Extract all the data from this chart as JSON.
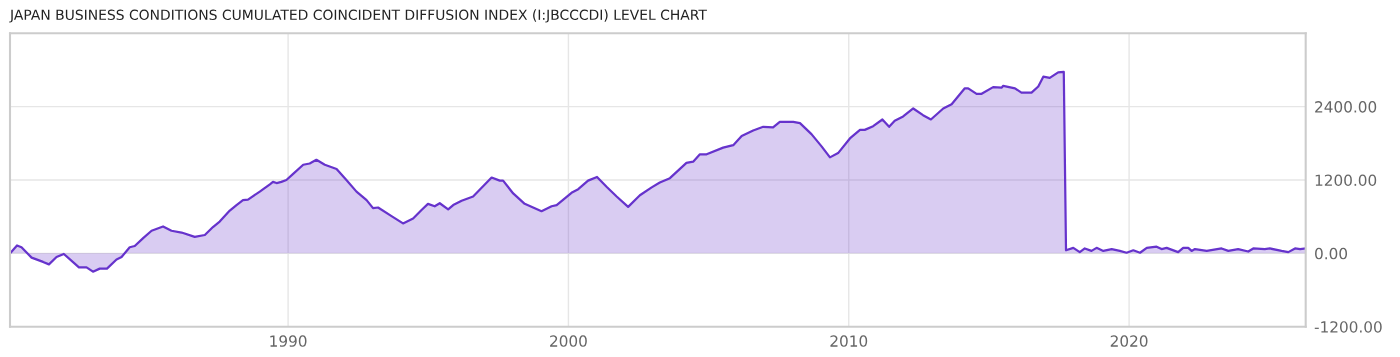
{
  "chart_data": {
    "type": "area",
    "title": "JAPAN BUSINESS CONDITIONS CUMULATED COINCIDENT DIFFUSION INDEX (I:JBCCCDI) LEVEL CHART",
    "x": [
      1980.08,
      1980.33,
      1980.49,
      1980.85,
      1981.26,
      1981.47,
      1981.74,
      1982.0,
      1982.54,
      1982.81,
      1983.04,
      1983.28,
      1983.54,
      1983.88,
      1984.06,
      1984.35,
      1984.53,
      1984.83,
      1985.13,
      1985.54,
      1985.84,
      1986.2,
      1986.67,
      1987.03,
      1987.32,
      1987.56,
      1987.92,
      1988.16,
      1988.39,
      1988.57,
      1988.99,
      1989.35,
      1989.46,
      1989.59,
      1989.76,
      1989.94,
      1990.18,
      1990.54,
      1990.77,
      1991.01,
      1991.31,
      1991.73,
      1992.08,
      1992.44,
      1992.8,
      1993.03,
      1993.21,
      1993.69,
      1994.1,
      1994.46,
      1994.76,
      1994.99,
      1995.23,
      1995.41,
      1995.71,
      1995.89,
      1996.19,
      1996.6,
      1997.26,
      1997.55,
      1997.67,
      1998.03,
      1998.44,
      1998.74,
      1999.04,
      1999.4,
      1999.58,
      2000.11,
      2000.35,
      2000.7,
      2001.02,
      2001.36,
      2001.72,
      2002.13,
      2002.55,
      2002.97,
      2003.26,
      2003.62,
      2004.21,
      2004.45,
      2004.69,
      2004.93,
      2005.52,
      2005.88,
      2006.18,
      2006.59,
      2006.95,
      2007.3,
      2007.54,
      2008.02,
      2008.26,
      2008.67,
      2009.03,
      2009.33,
      2009.62,
      2010.04,
      2010.4,
      2010.57,
      2010.87,
      2011.2,
      2011.44,
      2011.64,
      2011.94,
      2012.3,
      2012.65,
      2012.93,
      2013.37,
      2013.67,
      2014.14,
      2014.26,
      2014.56,
      2014.74,
      2015.15,
      2015.45,
      2015.51,
      2015.93,
      2016.16,
      2016.52,
      2016.76,
      2016.94,
      2017.17,
      2017.47,
      2017.67,
      2017.75,
      2018.01,
      2018.24,
      2018.42,
      2018.66,
      2018.84,
      2019.08,
      2019.38,
      2019.67,
      2019.91,
      2020.15,
      2020.39,
      2020.63,
      2020.98,
      2021.16,
      2021.34,
      2021.75,
      2021.93,
      2022.11,
      2022.23,
      2022.35,
      2022.77,
      2023.3,
      2023.54,
      2023.89,
      2024.25,
      2024.43,
      2024.84,
      2025.02,
      2025.44,
      2025.68,
      2025.92,
      2026.1,
      2026.28
    ],
    "series": [
      {
        "color": "#6633cc",
        "values": [
          0,
          130,
          100,
          -70,
          -140,
          -180,
          -60,
          -10,
          -230,
          -230,
          -300,
          -250,
          -250,
          -100,
          -60,
          100,
          120,
          250,
          370,
          440,
          370,
          340,
          270,
          300,
          430,
          520,
          700,
          790,
          870,
          880,
          1010,
          1130,
          1170,
          1150,
          1170,
          1200,
          1300,
          1450,
          1470,
          1530,
          1450,
          1380,
          1200,
          1010,
          870,
          740,
          750,
          610,
          490,
          570,
          710,
          810,
          770,
          820,
          720,
          790,
          860,
          930,
          1240,
          1190,
          1190,
          980,
          810,
          750,
          690,
          770,
          790,
          990,
          1050,
          1190,
          1250,
          1090,
          930,
          760,
          950,
          1080,
          1160,
          1230,
          1480,
          1500,
          1620,
          1620,
          1730,
          1770,
          1920,
          2010,
          2070,
          2060,
          2150,
          2150,
          2130,
          1950,
          1750,
          1570,
          1640,
          1880,
          2020,
          2020,
          2080,
          2190,
          2070,
          2170,
          2240,
          2370,
          2260,
          2190,
          2370,
          2440,
          2700,
          2700,
          2610,
          2610,
          2720,
          2710,
          2740,
          2700,
          2630,
          2630,
          2730,
          2890,
          2870,
          2960,
          2970,
          50,
          90,
          20,
          80,
          40,
          90,
          40,
          70,
          40,
          10,
          50,
          10,
          90,
          110,
          70,
          90,
          20,
          90,
          90,
          40,
          70,
          40,
          80,
          40,
          70,
          30,
          80,
          70,
          80,
          40,
          20,
          80,
          70,
          80
        ]
      }
    ],
    "xlim": [
      1980.08,
      2026.3
    ],
    "xticks": [
      1990,
      2000,
      2010,
      2020
    ],
    "ylim": [
      -1200,
      3600
    ],
    "yticks": [
      {
        "value": -1200,
        "label": "-1200.00"
      },
      {
        "value": 0,
        "label": "0.00"
      },
      {
        "value": 1200,
        "label": "1200.00"
      },
      {
        "value": 2400,
        "label": "2400.00"
      }
    ],
    "grid": true
  }
}
